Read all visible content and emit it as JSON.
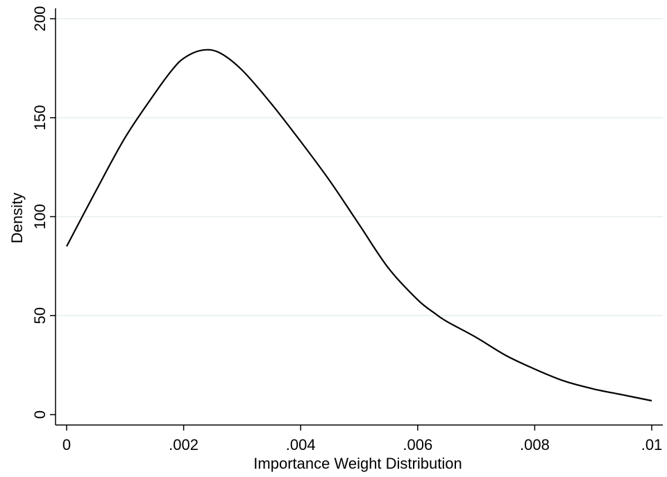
{
  "chart_data": {
    "type": "line",
    "title": "",
    "xlabel": "Importance Weight Distribution",
    "ylabel": "Density",
    "xlim": [
      0,
      0.01
    ],
    "ylim": [
      0,
      200
    ],
    "x_ticks": [
      0,
      0.002,
      0.004,
      0.006,
      0.008,
      0.01
    ],
    "x_tick_labels": [
      "0",
      ".002",
      ".004",
      ".006",
      ".008",
      ".01"
    ],
    "y_ticks": [
      0,
      50,
      100,
      150,
      200
    ],
    "y_tick_labels": [
      "0",
      "50",
      "100",
      "150",
      "200"
    ],
    "grid": "horizontal",
    "legend": "none",
    "colors": {
      "line": "#000000",
      "grid": "#e6eef0",
      "axis": "#000000"
    },
    "series": [
      {
        "x": [
          0,
          0.0005,
          0.001,
          0.0015,
          0.0018,
          0.002,
          0.0023,
          0.0026,
          0.003,
          0.0035,
          0.004,
          0.0045,
          0.005,
          0.0055,
          0.006,
          0.0063,
          0.0065,
          0.007,
          0.0075,
          0.008,
          0.0085,
          0.009,
          0.0095,
          0.01
        ],
        "y": [
          85,
          113,
          140,
          162,
          174,
          180,
          184,
          183,
          174,
          157,
          138,
          118,
          96,
          74,
          58,
          51,
          47,
          39,
          30,
          23,
          17,
          13,
          10,
          7
        ]
      }
    ]
  }
}
